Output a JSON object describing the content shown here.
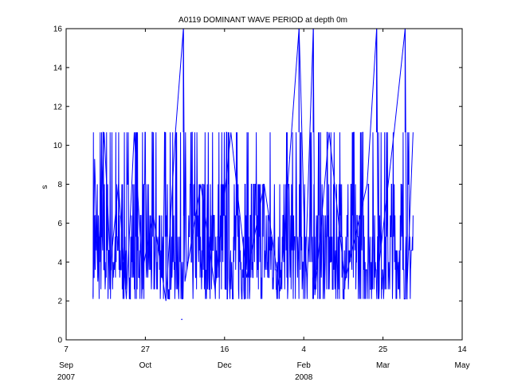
{
  "chart_data": {
    "type": "line",
    "title": "A0119 DOMINANT WAVE PERIOD at depth 0m",
    "xlabel": "",
    "ylabel": "s",
    "xlim": [
      "2007-09-07",
      "2008-05-14"
    ],
    "ylim": [
      0,
      16
    ],
    "grid": false,
    "x_ticks": [
      {
        "date": "2007-09-07",
        "day": "7",
        "month": "Sep"
      },
      {
        "date": "2007-10-27",
        "day": "27",
        "month": "Oct"
      },
      {
        "date": "2007-12-16",
        "day": "16",
        "month": "Dec"
      },
      {
        "date": "2008-02-04",
        "day": "4",
        "month": "Feb"
      },
      {
        "date": "2008-03-25",
        "day": "25",
        "month": "Mar"
      },
      {
        "date": "2008-05-14",
        "day": "14",
        "month": "May"
      }
    ],
    "x_year_labels": [
      {
        "date": "2007-09-07",
        "text": "2007"
      },
      {
        "date": "2008-02-04",
        "text": "2008"
      }
    ],
    "y_ticks": [
      0,
      2,
      4,
      6,
      8,
      10,
      12,
      14,
      16
    ],
    "series": [
      {
        "color": "#0000ff",
        "start": "2007-09-24",
        "end": "2008-04-13",
        "envelope": {
          "low": 2.0,
          "high": 10.67
        },
        "points": [
          {
            "x": "2007-09-24",
            "y": 2.2
          },
          {
            "x": "2007-09-25",
            "y": 9.3
          },
          {
            "x": "2007-09-27",
            "y": 3.0
          },
          {
            "x": "2007-10-01",
            "y": 10.67
          },
          {
            "x": "2007-10-05",
            "y": 3.8
          },
          {
            "x": "2007-10-10",
            "y": 8.0
          },
          {
            "x": "2007-10-15",
            "y": 2.1
          },
          {
            "x": "2007-10-20",
            "y": 10.67
          },
          {
            "x": "2007-10-25",
            "y": 3.5
          },
          {
            "x": "2007-11-01",
            "y": 6.4
          },
          {
            "x": "2007-11-09",
            "y": 2.0
          },
          {
            "x": "2007-11-15",
            "y": 10.67
          },
          {
            "x": "2007-11-20",
            "y": 16.0
          },
          {
            "x": "2007-11-21",
            "y": 3.0
          },
          {
            "x": "2007-12-01",
            "y": 8.0
          },
          {
            "x": "2007-12-10",
            "y": 2.6
          },
          {
            "x": "2007-12-20",
            "y": 10.67
          },
          {
            "x": "2007-12-30",
            "y": 3.2
          },
          {
            "x": "2008-01-10",
            "y": 8.0
          },
          {
            "x": "2008-01-20",
            "y": 2.5
          },
          {
            "x": "2008-02-01",
            "y": 16.0
          },
          {
            "x": "2008-02-02",
            "y": 13.3
          },
          {
            "x": "2008-02-05",
            "y": 3.5
          },
          {
            "x": "2008-02-10",
            "y": 16.0
          },
          {
            "x": "2008-02-11",
            "y": 2.3
          },
          {
            "x": "2008-02-20",
            "y": 10.67
          },
          {
            "x": "2008-03-01",
            "y": 3.0
          },
          {
            "x": "2008-03-15",
            "y": 8.0
          },
          {
            "x": "2008-03-21",
            "y": 16.0
          },
          {
            "x": "2008-03-22",
            "y": 3.5
          },
          {
            "x": "2008-04-01",
            "y": 10.67
          },
          {
            "x": "2008-04-08",
            "y": 16.0
          },
          {
            "x": "2008-04-09",
            "y": 2.2
          },
          {
            "x": "2008-04-13",
            "y": 10.67
          }
        ]
      }
    ],
    "isolated_points": [
      {
        "x": "2007-11-19",
        "y": 1.05
      }
    ]
  }
}
